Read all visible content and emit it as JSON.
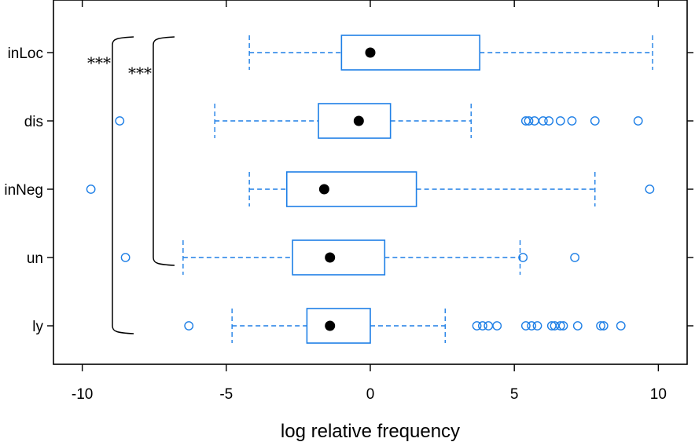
{
  "chart_data": {
    "type": "boxplot",
    "orientation": "horizontal",
    "xlabel": "log relative frequency",
    "xlim": [
      -11,
      11
    ],
    "xticks": [
      -10,
      -5,
      0,
      5,
      10
    ],
    "categories": [
      "inLoc",
      "dis",
      "inNeg",
      "un",
      "ly"
    ],
    "boxes": [
      {
        "name": "inLoc",
        "whisker_low": -4.2,
        "q1": -1.0,
        "median": 0.0,
        "q3": 3.8,
        "whisker_high": 9.8,
        "outliers": []
      },
      {
        "name": "dis",
        "whisker_low": -5.4,
        "q1": -1.8,
        "median": -0.4,
        "q3": 0.7,
        "whisker_high": 3.5,
        "outliers": [
          -8.7,
          5.4,
          5.5,
          5.7,
          6.0,
          6.2,
          6.6,
          7.0,
          7.8,
          9.3
        ]
      },
      {
        "name": "inNeg",
        "whisker_low": -4.2,
        "q1": -2.9,
        "median": -1.6,
        "q3": 1.6,
        "whisker_high": 7.8,
        "outliers": [
          -9.7,
          9.7
        ]
      },
      {
        "name": "un",
        "whisker_low": -6.5,
        "q1": -2.7,
        "median": -1.4,
        "q3": 0.5,
        "whisker_high": 5.2,
        "outliers": [
          -8.5,
          5.3,
          7.1
        ]
      },
      {
        "name": "ly",
        "whisker_low": -4.8,
        "q1": -2.2,
        "median": -1.4,
        "q3": 0.0,
        "whisker_high": 2.6,
        "outliers": [
          -6.3,
          3.7,
          3.9,
          4.1,
          4.4,
          5.4,
          5.6,
          5.8,
          6.3,
          6.4,
          6.6,
          6.7,
          7.2,
          8.0,
          8.1,
          8.7
        ]
      }
    ],
    "significance": [
      {
        "from": "inLoc",
        "to": "ly",
        "label": "***"
      },
      {
        "from": "inLoc",
        "to": "un",
        "label": "***"
      }
    ],
    "colors": {
      "box": "#1e7fe6",
      "median": "#000000",
      "frame": "#000000"
    }
  }
}
